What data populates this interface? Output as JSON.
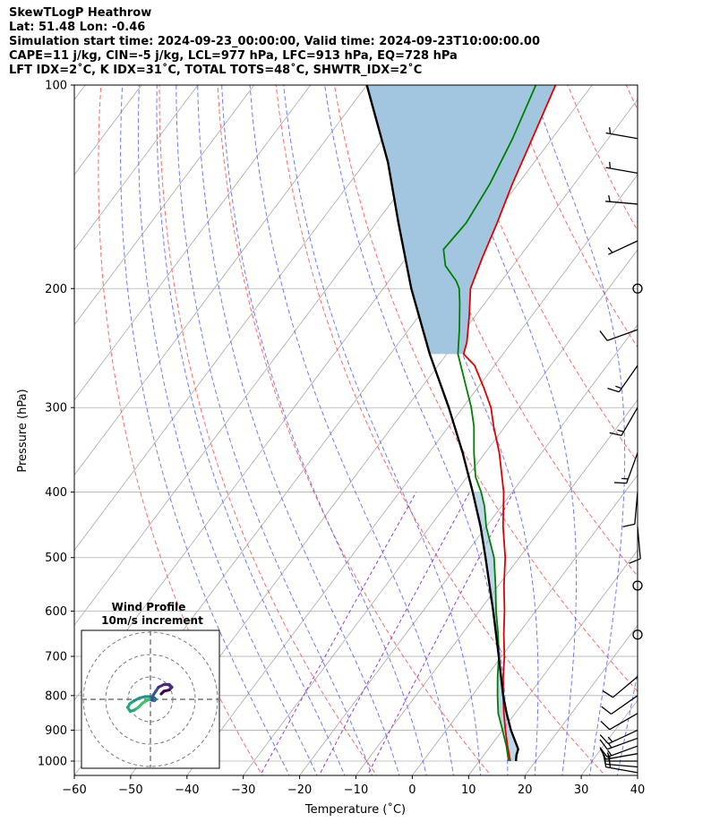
{
  "header": {
    "line1": "SkewTLogP Heathrow",
    "line2": "Lat: 51.48   Lon: -0.46",
    "line3": "Simulation start time: 2024-09-23_00:00:00, Valid time: 2024-09-23T10:00:00.00",
    "line4": "CAPE=11 j/kg, CIN=-5 j/kg, LCL=977 hPa, LFC=913 hPa, EQ=728 hPa",
    "line5": "LFT IDX=2˚C, K IDX=31˚C, TOTAL TOTS=48˚C, SHWTR_IDX=2˚C"
  },
  "colors": {
    "temperature": "#e00000",
    "dewpoint": "#008000",
    "parcel": "#000000",
    "cape_fill": "#a3c6e0",
    "dry_adiabat": "#ff5a5a",
    "moist_adiabat": "#4a5aff",
    "mixing_ratio": "#9a3ad6",
    "isotherm": "#a9a9a9"
  },
  "chart_data": {
    "type": "line",
    "title": "SkewTLogP Heathrow",
    "xlabel": "Temperature (˚C)",
    "ylabel": "Pressure (hPa)",
    "xlim": [
      -60,
      40
    ],
    "ylim": [
      1050,
      100
    ],
    "x_ticks": [
      "−60",
      "−50",
      "−40",
      "−30",
      "−20",
      "−10",
      "0",
      "10",
      "20",
      "30",
      "40"
    ],
    "x_tick_values": [
      -60,
      -50,
      -40,
      -30,
      -20,
      -10,
      0,
      10,
      20,
      30,
      40
    ],
    "y_ticks": [
      "1000",
      "900",
      "800",
      "700",
      "600",
      "500",
      "400",
      "300",
      "200",
      "100"
    ],
    "y_tick_values": [
      1000,
      900,
      800,
      700,
      600,
      500,
      400,
      300,
      200,
      100
    ],
    "skew": 0.75,
    "series": [
      {
        "name": "Temperature",
        "points": [
          [
            1000,
            15.5
          ],
          [
            950,
            13.0
          ],
          [
            900,
            10.5
          ],
          [
            850,
            8.0
          ],
          [
            800,
            5.5
          ],
          [
            750,
            3.0
          ],
          [
            700,
            0.5
          ],
          [
            650,
            -2.5
          ],
          [
            600,
            -5.5
          ],
          [
            550,
            -9.0
          ],
          [
            500,
            -12.5
          ],
          [
            450,
            -17.0
          ],
          [
            400,
            -21.5
          ],
          [
            350,
            -27.5
          ],
          [
            320,
            -32.0
          ],
          [
            300,
            -35.0
          ],
          [
            280,
            -39.0
          ],
          [
            260,
            -43.5
          ],
          [
            250,
            -47.0
          ],
          [
            240,
            -48.0
          ],
          [
            220,
            -51.0
          ],
          [
            200,
            -54.5
          ],
          [
            180,
            -56.5
          ],
          [
            160,
            -58.5
          ],
          [
            140,
            -61.0
          ],
          [
            120,
            -63.5
          ],
          [
            100,
            -66.5
          ]
        ]
      },
      {
        "name": "Dewpoint",
        "points": [
          [
            1000,
            15.2
          ],
          [
            950,
            12.8
          ],
          [
            900,
            10.0
          ],
          [
            850,
            7.0
          ],
          [
            800,
            4.5
          ],
          [
            750,
            2.0
          ],
          [
            700,
            -0.5
          ],
          [
            650,
            -3.5
          ],
          [
            600,
            -7.0
          ],
          [
            550,
            -10.5
          ],
          [
            500,
            -14.5
          ],
          [
            450,
            -20.0
          ],
          [
            420,
            -23.0
          ],
          [
            400,
            -25.5
          ],
          [
            380,
            -28.5
          ],
          [
            350,
            -32.0
          ],
          [
            320,
            -35.5
          ],
          [
            300,
            -38.5
          ],
          [
            250,
            -48.0
          ],
          [
            230,
            -51.0
          ],
          [
            210,
            -54.5
          ],
          [
            200,
            -56.5
          ],
          [
            195,
            -58.0
          ],
          [
            185,
            -62.0
          ],
          [
            175,
            -64.5
          ],
          [
            160,
            -64.0
          ],
          [
            140,
            -65.0
          ],
          [
            120,
            -67.0
          ],
          [
            100,
            -70.0
          ]
        ]
      },
      {
        "name": "Parcel",
        "points": [
          [
            1000,
            16.5
          ],
          [
            980,
            15.8
          ],
          [
            960,
            15.3
          ],
          [
            900,
            11.5
          ],
          [
            850,
            8.5
          ],
          [
            800,
            5.5
          ],
          [
            700,
            -0.5
          ],
          [
            600,
            -7.5
          ],
          [
            500,
            -16.0
          ],
          [
            450,
            -21.0
          ],
          [
            400,
            -27.0
          ],
          [
            350,
            -34.0
          ],
          [
            300,
            -42.5
          ],
          [
            250,
            -53.0
          ],
          [
            200,
            -65.0
          ],
          [
            160,
            -76.0
          ],
          [
            130,
            -86.0
          ],
          [
            100,
            -100.0
          ]
        ]
      }
    ],
    "cape_region": [
      100,
      250
    ],
    "surface_pressure": 1033,
    "wind_barbs": [
      {
        "p": 1040,
        "dir": 280,
        "speed": 15
      },
      {
        "p": 1020,
        "dir": 275,
        "speed": 15
      },
      {
        "p": 1000,
        "dir": 270,
        "speed": 15
      },
      {
        "p": 975,
        "dir": 260,
        "speed": 15
      },
      {
        "p": 950,
        "dir": 250,
        "speed": 15
      },
      {
        "p": 925,
        "dir": 250,
        "speed": 15
      },
      {
        "p": 900,
        "dir": 245,
        "speed": 15
      },
      {
        "p": 850,
        "dir": 240,
        "speed": 10
      },
      {
        "p": 800,
        "dir": 235,
        "speed": 10
      },
      {
        "p": 750,
        "dir": 230,
        "speed": 10
      },
      {
        "p": 650,
        "dir": 0,
        "speed": 0
      },
      {
        "p": 550,
        "dir": 0,
        "speed": 0
      },
      {
        "p": 450,
        "dir": 175,
        "speed": 10
      },
      {
        "p": 400,
        "dir": 185,
        "speed": 10
      },
      {
        "p": 350,
        "dir": 200,
        "speed": 15
      },
      {
        "p": 300,
        "dir": 210,
        "speed": 15
      },
      {
        "p": 260,
        "dir": 215,
        "speed": 15
      },
      {
        "p": 230,
        "dir": 250,
        "speed": 10
      },
      {
        "p": 200,
        "dir": 0,
        "speed": 0
      },
      {
        "p": 170,
        "dir": 245,
        "speed": 5
      },
      {
        "p": 150,
        "dir": 275,
        "speed": 5
      },
      {
        "p": 135,
        "dir": 280,
        "speed": 5
      },
      {
        "p": 120,
        "dir": 280,
        "speed": 5
      }
    ],
    "inset": {
      "title": "Wind Profile",
      "subtitle": "10m/s increment",
      "hodograph": [
        [
          0,
          0
        ],
        [
          -1.5,
          -0.5
        ],
        [
          -3,
          -1.5
        ],
        [
          -4.5,
          -3
        ],
        [
          -6,
          -4
        ],
        [
          -7.5,
          -4.5
        ],
        [
          -8.5,
          -3
        ],
        [
          -7.5,
          -1.5
        ],
        [
          -6,
          -0.5
        ],
        [
          -4,
          0.5
        ],
        [
          -2,
          1
        ],
        [
          0,
          1
        ],
        [
          1.5,
          0.5
        ],
        [
          2,
          0
        ],
        [
          1.5,
          -0.5
        ],
        [
          0.5,
          -0.3
        ],
        [
          1,
          1.5
        ],
        [
          2,
          3
        ],
        [
          3,
          4.5
        ],
        [
          5,
          5.5
        ],
        [
          7,
          5.5
        ],
        [
          8,
          4.5
        ],
        [
          7,
          3.5
        ],
        [
          5,
          3
        ],
        [
          4,
          2
        ]
      ]
    }
  }
}
